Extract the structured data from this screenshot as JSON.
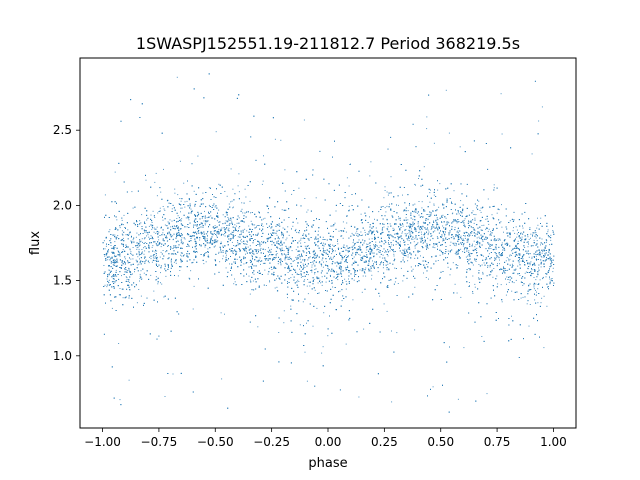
{
  "chart_data": {
    "type": "scatter",
    "title": "1SWASPJ152551.19-211812.7 Period 368219.5s",
    "xlabel": "phase",
    "ylabel": "flux",
    "xlim": [
      -1.1,
      1.1
    ],
    "ylim": [
      0.52,
      2.98
    ],
    "xticks": [
      -1.0,
      -0.75,
      -0.5,
      -0.25,
      0.0,
      0.25,
      0.5,
      0.75,
      1.0
    ],
    "xtick_labels": [
      "−1.00",
      "−0.75",
      "−0.50",
      "−0.25",
      "0.00",
      "0.25",
      "0.50",
      "0.75",
      "1.00"
    ],
    "yticks": [
      1.0,
      1.5,
      2.0,
      2.5
    ],
    "ytick_labels": [
      "1.0",
      "1.5",
      "2.0",
      "2.5"
    ],
    "grid": false,
    "legend": "none",
    "point_color": "#1f77b4",
    "x_range": [
      -1.0,
      1.0
    ],
    "y_range": [
      0.6,
      2.9
    ],
    "series": [
      {
        "x": [
          -1.0,
          -0.9,
          -0.8,
          -0.7,
          -0.6,
          -0.5,
          -0.4,
          -0.3,
          -0.2,
          -0.1,
          0.0,
          0.1,
          0.2,
          0.3,
          0.4,
          0.5,
          0.6,
          0.7,
          0.8,
          0.9,
          1.0
        ],
        "y": [
          1.65,
          1.65,
          1.72,
          1.8,
          1.84,
          1.82,
          1.78,
          1.73,
          1.68,
          1.64,
          1.63,
          1.65,
          1.72,
          1.8,
          1.84,
          1.82,
          1.78,
          1.73,
          1.68,
          1.64,
          1.65
        ]
      }
    ]
  }
}
